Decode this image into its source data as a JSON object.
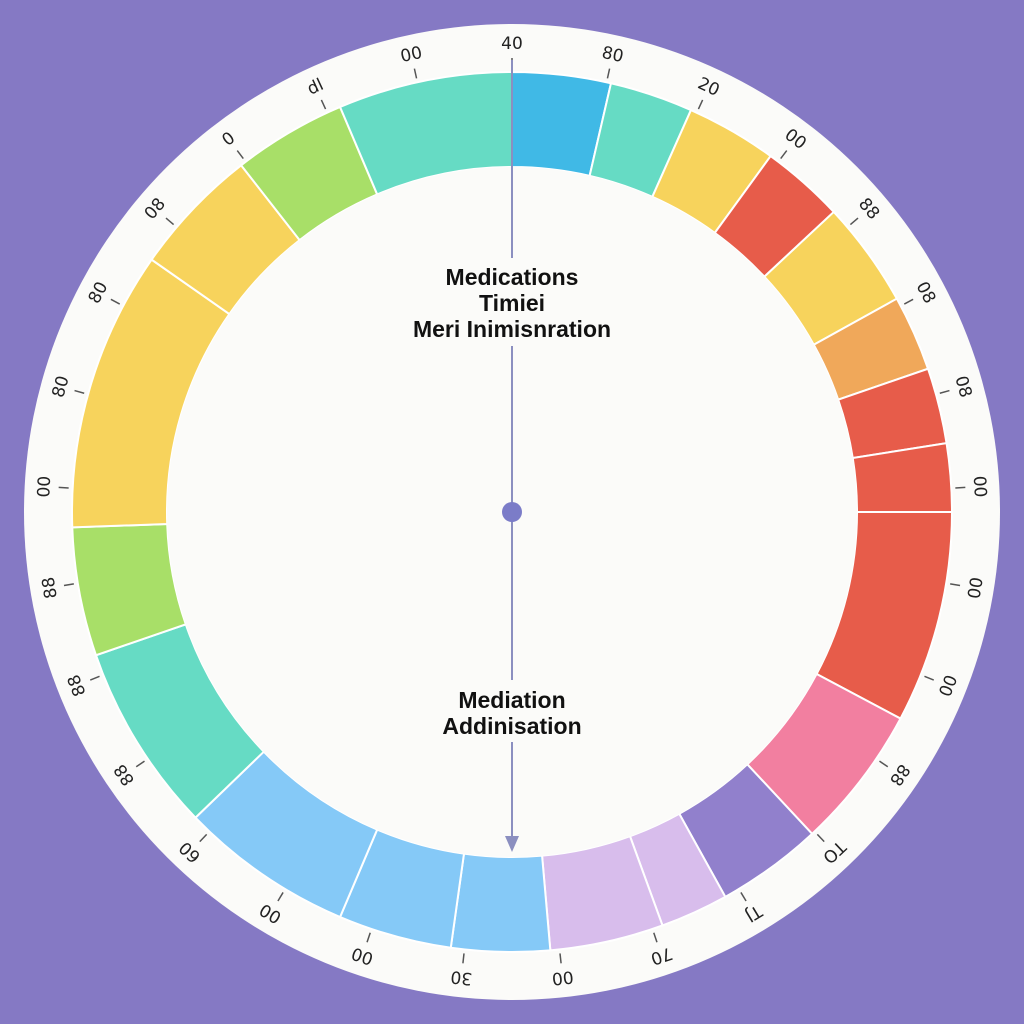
{
  "colors": {
    "background": "#8579c4",
    "dial_face": "#fbfbf9",
    "hand": "#8b8fc0",
    "center_dot": "#7b7cc8"
  },
  "top_text": [
    "Medications",
    "Timiei",
    "Meri Inimisnration"
  ],
  "bottom_text": [
    "Mediation",
    "Addinisation"
  ],
  "segments": [
    {
      "color": "#40b9e6"
    },
    {
      "color": "#66dbc4"
    },
    {
      "color": "#f7d35c"
    },
    {
      "color": "#e75c4a"
    },
    {
      "color": "#f7d35c"
    },
    {
      "color": "#f0a85a"
    },
    {
      "color": "#e75c4a"
    },
    {
      "color": "#e75c4a"
    },
    {
      "color": "#e75c4a"
    },
    {
      "color": "#f27fa0"
    },
    {
      "color": "#9180cc"
    },
    {
      "color": "#d8bdec"
    },
    {
      "color": "#d8bdec"
    },
    {
      "color": "#85c9f7"
    },
    {
      "color": "#85c9f7"
    },
    {
      "color": "#85c9f7"
    },
    {
      "color": "#66dbc4"
    },
    {
      "color": "#a8df68"
    },
    {
      "color": "#f7d35c"
    },
    {
      "color": "#f7d35c"
    },
    {
      "color": "#a8df68"
    },
    {
      "color": "#66dbc4"
    }
  ],
  "tick_labels": [
    "40",
    "80",
    "20",
    "00",
    "88",
    "08",
    "08",
    "00",
    "00",
    "00",
    "88",
    "TO",
    "TJ",
    "70",
    "00",
    "30",
    "00",
    "00",
    "60",
    "88",
    "88",
    "88",
    "00",
    "80",
    "80",
    "08",
    "0",
    "dl",
    "00"
  ]
}
